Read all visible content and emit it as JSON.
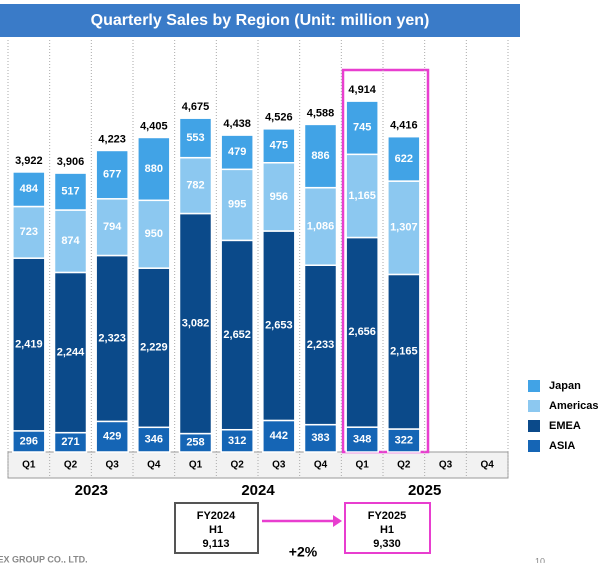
{
  "chart_data": {
    "type": "stacked_bar",
    "title": "Quarterly Sales by Region (Unit: million yen)",
    "categories": [
      "Q1",
      "Q2",
      "Q3",
      "Q4",
      "Q1",
      "Q2",
      "Q3",
      "Q4",
      "Q1",
      "Q2",
      "Q3",
      "Q4"
    ],
    "years": [
      "2023",
      "2024",
      "2025"
    ],
    "series": [
      {
        "name": "ASIA",
        "color": "#1565b5",
        "values": [
          296,
          271,
          429,
          346,
          258,
          312,
          442,
          383,
          348,
          322,
          null,
          null
        ]
      },
      {
        "name": "EMEA",
        "color": "#0b4a8a",
        "values": [
          2419,
          2244,
          2323,
          2229,
          3082,
          2652,
          2653,
          2233,
          2656,
          2165,
          null,
          null
        ],
        "value_labels": [
          "2,419",
          "2,244",
          "2,323",
          "2,229",
          "3,082",
          "2,652",
          "2,653",
          "2,233",
          "2,656",
          "2,165",
          null,
          null
        ]
      },
      {
        "name": "Americas",
        "color": "#8cc8f0",
        "values": [
          723,
          874,
          794,
          950,
          782,
          995,
          956,
          1086,
          1165,
          1307,
          null,
          null
        ],
        "value_labels": [
          "723",
          "874",
          "794",
          "950",
          "782",
          "995",
          "956",
          "1,086",
          "1,165",
          "1,307",
          null,
          null
        ]
      },
      {
        "name": "Japan",
        "color": "#41a3e6",
        "values": [
          484,
          517,
          677,
          880,
          553,
          479,
          475,
          886,
          745,
          622,
          null,
          null
        ]
      }
    ],
    "totals": {
      "values": [
        3922,
        3906,
        4223,
        4405,
        4675,
        4438,
        4526,
        4588,
        4914,
        4416,
        null,
        null
      ],
      "value_labels": [
        "3,922",
        "3,906",
        "4,223",
        "4,405",
        "4,675",
        "4,438",
        "4,526",
        "4,588",
        "4,914",
        "4,416",
        null,
        null
      ]
    },
    "ylim": [
      0,
      5770
    ],
    "grid": false,
    "legend": "right"
  },
  "comparison": {
    "from": {
      "label": "FY2024",
      "period": "H1",
      "value": "9,113"
    },
    "to": {
      "label": "FY2025",
      "period": "H1",
      "value": "9,330"
    },
    "change": "+2%"
  },
  "footer": {
    "company": "TEX GROUP CO., LTD.",
    "page": "10"
  }
}
